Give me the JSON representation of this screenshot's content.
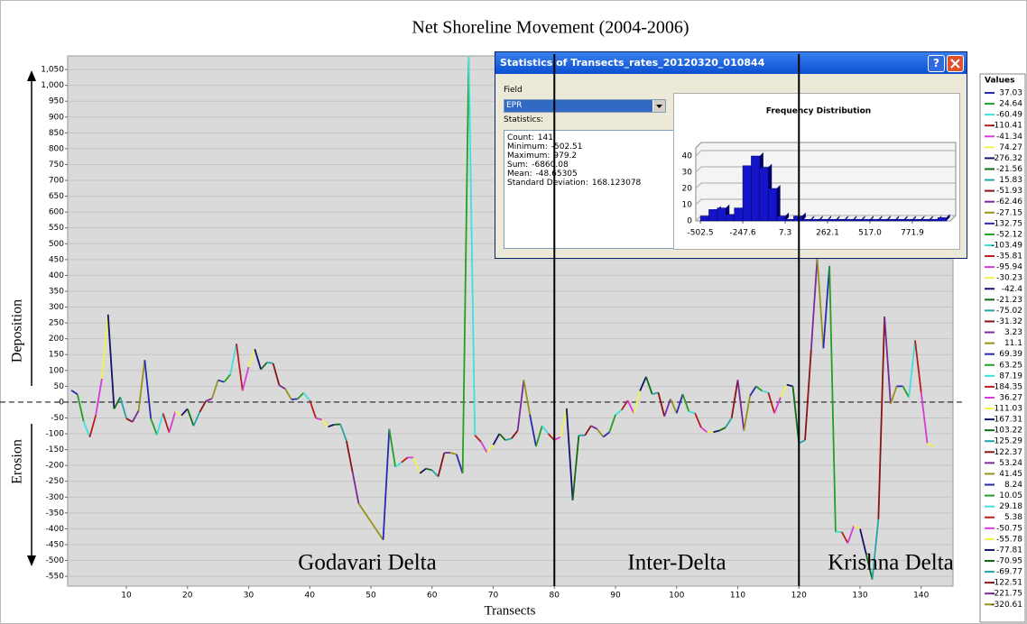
{
  "chart_data": [
    {
      "type": "line",
      "title": "Net Shoreline Movement (2004-2006)",
      "xlabel": "Transects",
      "upper_label": "Deposition",
      "lower_label": "Erosion",
      "legend_title": "Values",
      "regions": [
        "Godavari Delta",
        "Inter-Delta",
        "Krishna Delta"
      ],
      "dividers": [
        80,
        120
      ],
      "x": [
        1,
        2,
        3,
        4,
        5,
        6,
        7,
        8,
        9,
        10,
        11,
        12,
        13,
        14,
        15,
        16,
        17,
        18,
        19,
        20,
        21,
        22,
        23,
        24,
        25,
        26,
        27,
        28,
        29,
        30,
        31,
        32,
        33,
        34,
        35,
        36,
        37,
        38,
        39,
        40,
        41,
        42,
        43,
        44,
        45,
        46,
        47,
        48,
        52,
        53,
        54,
        55,
        56,
        57,
        58,
        59,
        60,
        61,
        62,
        63,
        64,
        65,
        66,
        67,
        68,
        69,
        70,
        71,
        72,
        73,
        74,
        75,
        76,
        77,
        78,
        79,
        80,
        81,
        82,
        83,
        84,
        85,
        86,
        87,
        88,
        89,
        90,
        91,
        92,
        93,
        94,
        95,
        96,
        97,
        98,
        99,
        100,
        101,
        102,
        103,
        104,
        105,
        106,
        107,
        108,
        109,
        110,
        111,
        112,
        113,
        114,
        115,
        116,
        117,
        118,
        119,
        120,
        121,
        122,
        123,
        124,
        125,
        126,
        127,
        128,
        129,
        130,
        131,
        132,
        133,
        134,
        135,
        136,
        137,
        138,
        139,
        140,
        141,
        142
      ],
      "values": [
        37.03,
        24.64,
        -60.49,
        -110.41,
        -41.34,
        74.27,
        276.32,
        -21.56,
        15.83,
        -51.93,
        -62.46,
        -27.15,
        132.75,
        -52.12,
        -103.49,
        -35.81,
        -95.94,
        -30.23,
        -42.4,
        -21.23,
        -75.02,
        -31.32,
        3.23,
        11.1,
        69.39,
        63.25,
        87.19,
        184.35,
        36.27,
        111.03,
        167.31,
        103.22,
        125.29,
        122.37,
        53.24,
        41.45,
        8.24,
        10.05,
        29.18,
        5.38,
        -50.75,
        -55.78,
        -77.81,
        -70.95,
        -69.77,
        -122.51,
        -221.75,
        -320.61,
        -435,
        -85,
        -205,
        -190,
        -175,
        -175,
        -225,
        -210,
        -215,
        -235,
        -160,
        -160,
        -165,
        -225,
        1090,
        -105,
        -125,
        -160,
        -135,
        -100,
        -120,
        -115,
        -90,
        70,
        -40,
        -140,
        -75,
        -100,
        -120,
        -110,
        -20,
        -310,
        -105,
        -105,
        -75,
        -85,
        -110,
        -95,
        -40,
        -25,
        5,
        -35,
        35,
        80,
        25,
        30,
        -45,
        10,
        -35,
        25,
        -30,
        -35,
        -80,
        -95,
        -95,
        -90,
        -80,
        -50,
        70,
        -90,
        20,
        50,
        35,
        30,
        -35,
        15,
        55,
        50,
        -130,
        -120,
        165,
        455,
        170,
        430,
        -410,
        -410,
        -445,
        -390,
        -400,
        -480,
        -560,
        -370,
        270,
        -5,
        50,
        50,
        15,
        195,
        30,
        -130,
        -140
      ],
      "colors": [
        "#2a2ab0",
        "#22a022",
        "#3de0e0",
        "#b81c1c",
        "#d83ad8",
        "#f2f24a",
        "#14146a",
        "#146a14",
        "#24a4a4",
        "#881414",
        "#7a2a9a",
        "#94941a"
      ],
      "legend_count": 48,
      "xlim": [
        0.4,
        145.2
      ],
      "ylim": [
        -581,
        1093
      ],
      "xticks": [
        10,
        20,
        30,
        40,
        50,
        60,
        70,
        80,
        90,
        100,
        110,
        120,
        130,
        140
      ],
      "yticks": [
        {
          "value": 1050,
          "label": "1,050"
        },
        {
          "value": 1000,
          "label": "1,000"
        },
        950,
        900,
        850,
        800,
        750,
        700,
        650,
        600,
        550,
        500,
        450,
        400,
        350,
        300,
        250,
        200,
        150,
        100,
        50,
        {
          "value": 0,
          "label": "-0"
        },
        -50,
        -100,
        -150,
        -200,
        -250,
        -300,
        -350,
        -400,
        -450,
        -500,
        -550
      ],
      "grid": true
    },
    {
      "type": "histogram",
      "title": "Frequency Distribution",
      "color": "#1414c8",
      "bins": [
        -502.5,
        -451.5,
        -400.5,
        -349.6,
        -298.6,
        -247.6,
        -196.6,
        -145.6,
        -94.7,
        -43.7,
        7.3,
        58.3,
        109.2,
        160.2,
        211.2,
        262.1,
        313.1,
        364.1,
        415.1,
        466.0,
        517.0,
        568.0,
        619.0,
        670.0,
        720.9,
        771.9,
        822.9,
        873.8,
        924.8,
        975.8
      ],
      "values": [
        3,
        7,
        8,
        4,
        8,
        34,
        40,
        33,
        20,
        3,
        1,
        3,
        1,
        1,
        1,
        1,
        1,
        1,
        1,
        1,
        1,
        1,
        1,
        1,
        1,
        1,
        1,
        1,
        2
      ],
      "xlim": [
        -530,
        1000
      ],
      "ylim": [
        0,
        45
      ],
      "yticks": [
        0,
        10,
        20,
        30,
        40
      ],
      "xticks": [
        -502.5,
        -247.6,
        7.3,
        262.1,
        {
          "value": 517,
          "label": "517.0"
        },
        771.9
      ]
    }
  ],
  "dialog": {
    "title": "Statistics of Transects_rates_20120320_010844",
    "help": "?",
    "field_label": "Field",
    "field_value": "EPR",
    "stats_label": "Statistics:",
    "stats": [
      {
        "label": "Count:",
        "value": "141"
      },
      {
        "label": "Minimum:",
        "value": "-502.51"
      },
      {
        "label": "Maximum:",
        "value": "979.2"
      },
      {
        "label": "Sum:",
        "value": "-6860.08"
      },
      {
        "label": "Mean:",
        "value": "-48.65305"
      },
      {
        "label": "Standard Deviation:",
        "value": "168.123078"
      }
    ]
  }
}
